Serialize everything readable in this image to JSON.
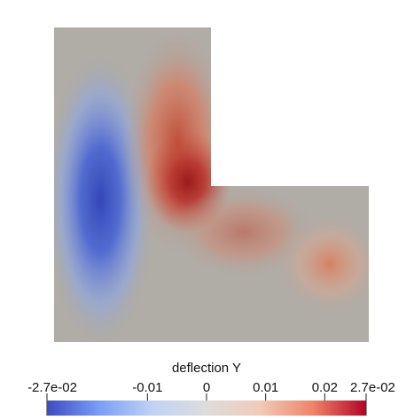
{
  "plot": {
    "domain_shape": "L-shaped",
    "field": "deflection Y",
    "colormap": "cool-to-warm",
    "background_color": "#ffffff",
    "neutral_color": "#b0aca6"
  },
  "colorbar": {
    "title": "deflection Y",
    "range": [
      -0.027,
      0.027
    ],
    "orientation": "horizontal",
    "gradient_stops": [
      "#3b4cc0",
      "#7b9ff9",
      "#c0d4f5",
      "#dddcdc",
      "#f2cbb7",
      "#ee8468",
      "#b40426"
    ],
    "ticks": [
      {
        "value": -0.027,
        "label": "-2.7e-02"
      },
      {
        "value": -0.01,
        "label": "-0.01"
      },
      {
        "value": 0,
        "label": "0"
      },
      {
        "value": 0.01,
        "label": "0.01"
      },
      {
        "value": 0.02,
        "label": "0.02"
      },
      {
        "value": 0.027,
        "label": "2.7e-02"
      }
    ]
  }
}
